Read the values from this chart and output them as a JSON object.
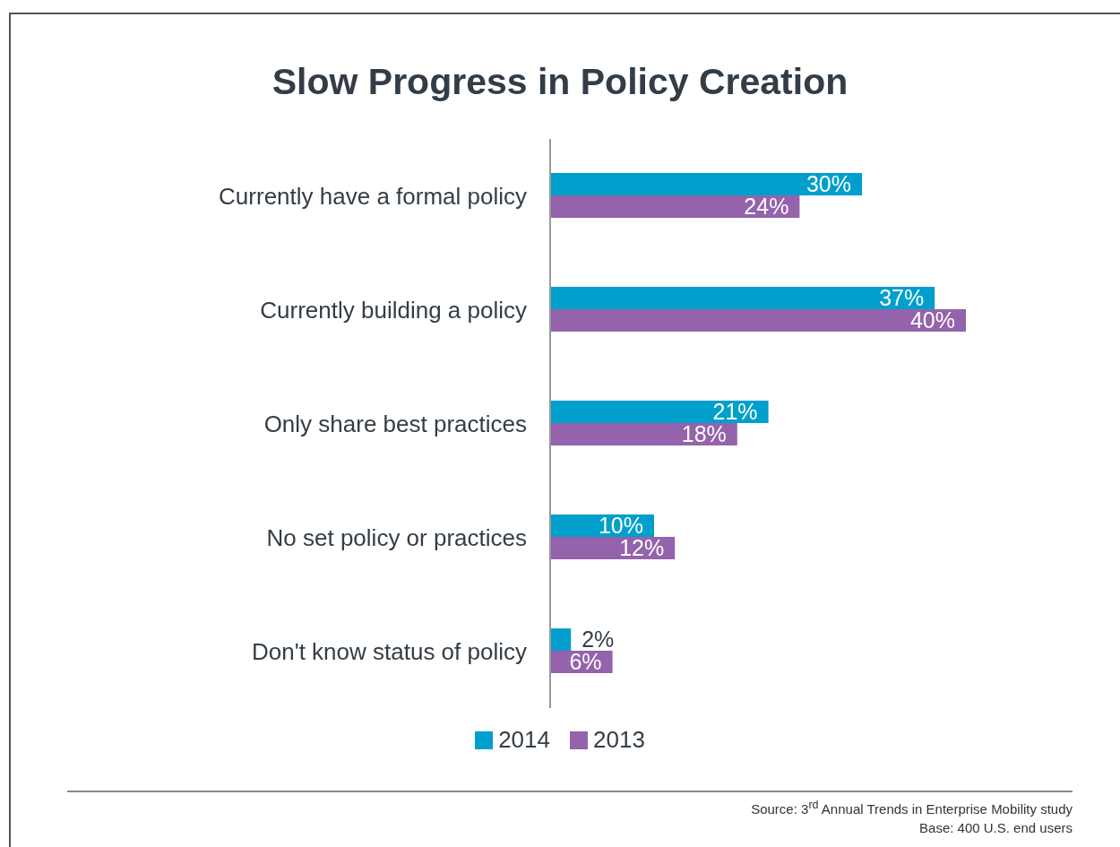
{
  "chart_data": {
    "type": "bar",
    "orientation": "horizontal",
    "title": "Slow Progress in Policy Creation",
    "categories": [
      "Currently have a formal policy",
      "Currently building a policy",
      "Only share best practices",
      "No set policy or practices",
      "Don't know status of policy"
    ],
    "series": [
      {
        "name": "2014",
        "color": "#009fcc",
        "values": [
          30,
          37,
          21,
          10,
          2
        ],
        "value_labels": [
          "30%",
          "37%",
          "21%",
          "10%",
          "2%"
        ]
      },
      {
        "name": "2013",
        "color": "#9463ab",
        "values": [
          24,
          40,
          18,
          12,
          6
        ],
        "value_labels": [
          "24%",
          "40%",
          "18%",
          "12%",
          "6%"
        ]
      }
    ],
    "legend": "bottom",
    "grid": false,
    "annotations": [
      "Source: 3$^{rd}$ Annual Trends in Enterprise Mobility study",
      "Base: 400 U.S. end users"
    ]
  }
}
